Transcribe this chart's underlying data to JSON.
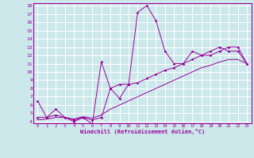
{
  "title": "",
  "xlabel": "Windchill (Refroidissement éolien,°C)",
  "x_values": [
    0,
    1,
    2,
    3,
    4,
    5,
    6,
    7,
    8,
    9,
    10,
    11,
    12,
    13,
    14,
    15,
    16,
    17,
    18,
    19,
    20,
    21,
    22,
    23
  ],
  "line1": [
    6.5,
    4.5,
    5.5,
    4.5,
    4.0,
    4.5,
    3.7,
    11.2,
    8.0,
    6.8,
    8.5,
    17.2,
    18.0,
    16.2,
    12.5,
    11.0,
    11.0,
    12.5,
    12.0,
    12.5,
    13.0,
    12.5,
    12.5,
    11.0
  ],
  "line2": [
    4.5,
    4.5,
    4.8,
    4.5,
    4.2,
    4.5,
    4.2,
    4.5,
    8.0,
    8.5,
    8.5,
    8.7,
    9.2,
    9.7,
    10.2,
    10.5,
    11.0,
    11.5,
    12.0,
    12.0,
    12.5,
    13.0,
    13.0,
    11.0
  ],
  "line3": [
    4.2,
    4.3,
    4.5,
    4.5,
    4.3,
    4.6,
    4.4,
    4.8,
    5.5,
    6.0,
    6.5,
    7.0,
    7.5,
    8.0,
    8.5,
    9.0,
    9.5,
    10.0,
    10.5,
    10.8,
    11.2,
    11.5,
    11.5,
    11.0
  ],
  "line_color": "#990099",
  "bg_color": "#cce8ea",
  "grid_color": "#ffffff",
  "ylim": [
    4,
    18
  ],
  "yticks": [
    4,
    5,
    6,
    7,
    8,
    9,
    10,
    11,
    12,
    13,
    14,
    15,
    16,
    17,
    18
  ],
  "xlim": [
    0,
    23
  ],
  "xticks": [
    0,
    1,
    2,
    3,
    4,
    5,
    6,
    7,
    8,
    9,
    10,
    11,
    12,
    13,
    14,
    15,
    16,
    17,
    18,
    19,
    20,
    21,
    22,
    23
  ]
}
